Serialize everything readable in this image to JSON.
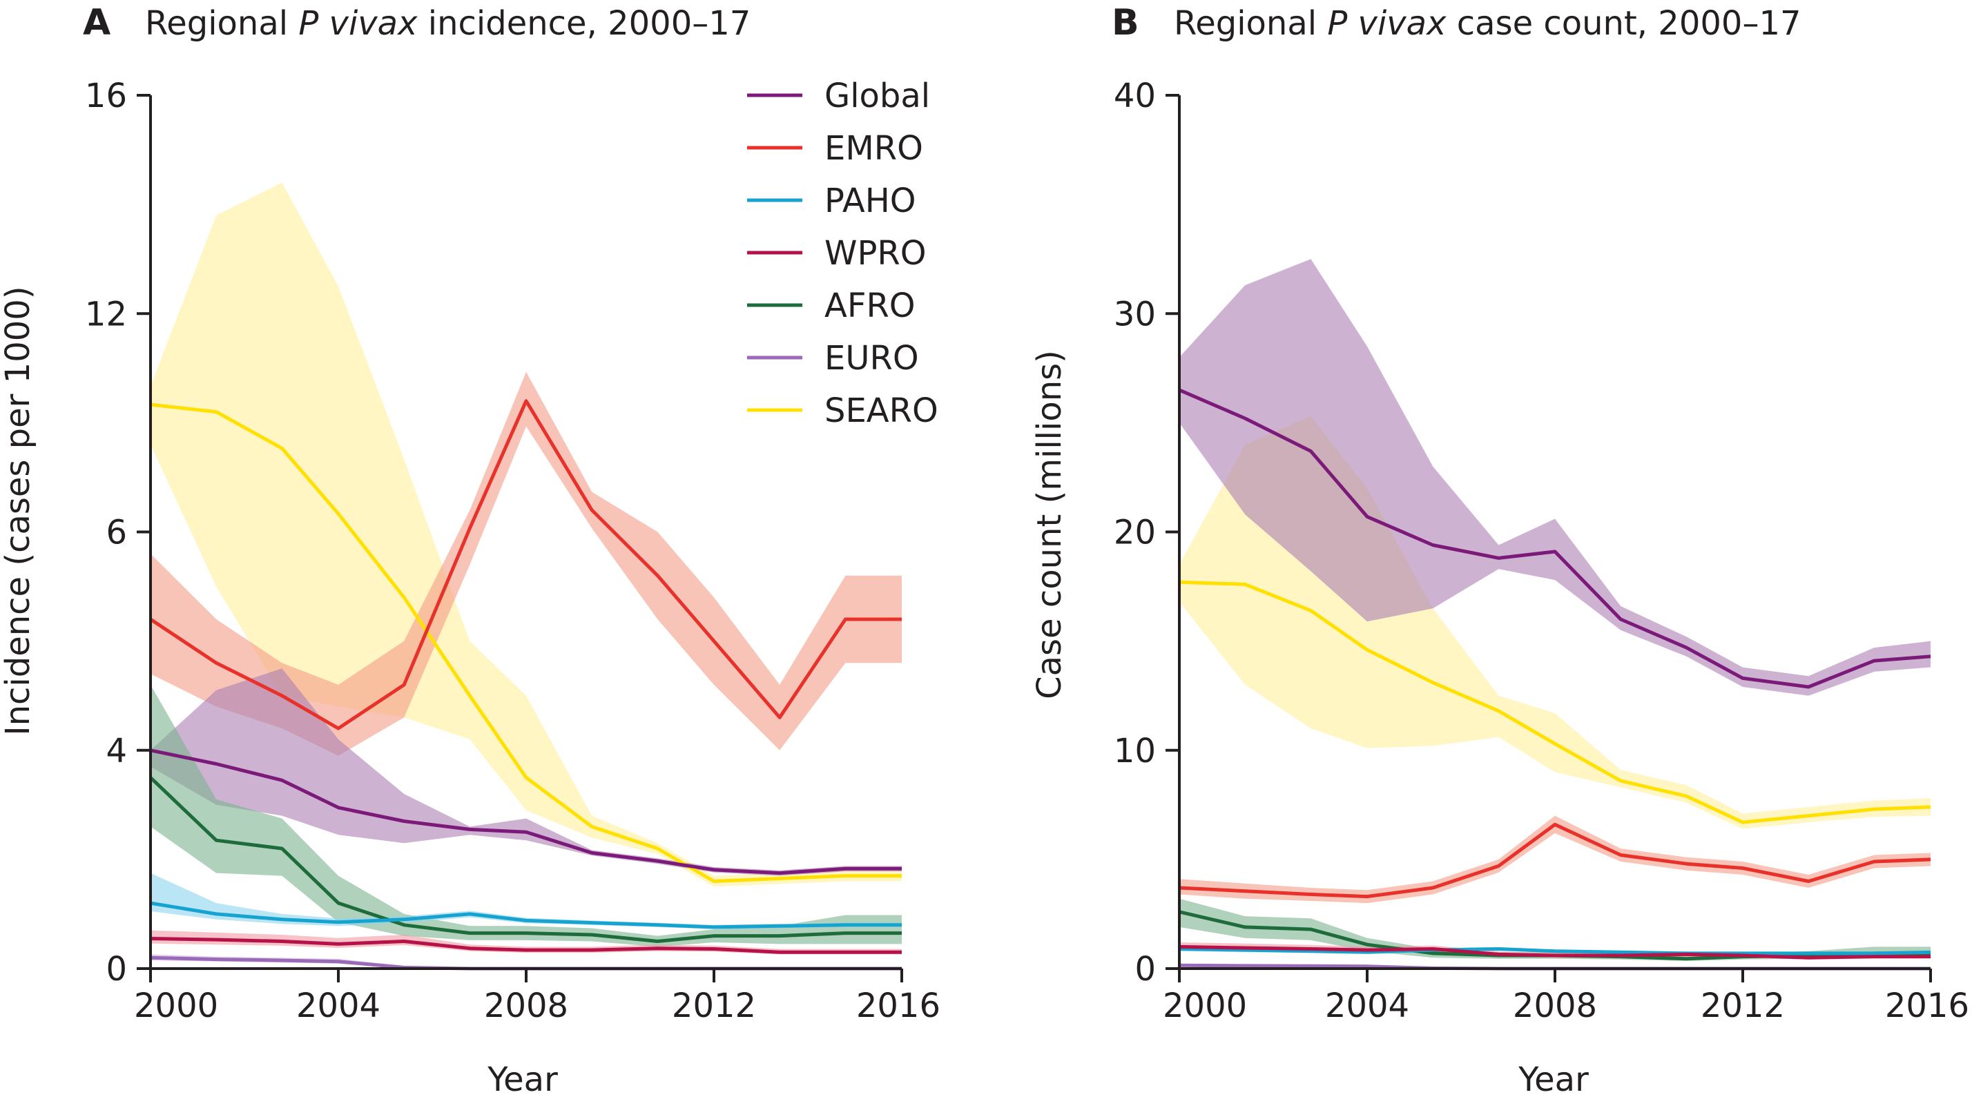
{
  "colors": {
    "Global": "#7b1a79",
    "EMRO": "#e8312a",
    "PAHO": "#16a3cf",
    "WPRO": "#b5124a",
    "AFRO": "#1e6b3c",
    "EURO": "#9a69b8",
    "SEARO": "#ffe000"
  },
  "band_colors": {
    "Global": "#ac80b2",
    "EMRO": "#f39d87",
    "PAHO": "#8cd3ec",
    "WPRO": "#f19aa3",
    "AFRO": "#7bb28e",
    "EURO": "#c9b2dd",
    "SEARO": "#fff09c"
  },
  "chart_data": [
    {
      "type": "line",
      "panel_letter": "A",
      "title_pre": "Regional ",
      "title_italic": "P vivax",
      "title_post": " incidence, 2000–17",
      "xlabel": "Year",
      "ylabel": "Incidence (cases per 1000)",
      "xlim": [
        2000,
        2016
      ],
      "ylim": [
        0,
        16
      ],
      "yticks": [
        0,
        4,
        6,
        12,
        16
      ],
      "xticks": [
        2000,
        2004,
        2008,
        2012,
        2016
      ],
      "legend": {
        "position": "top-right"
      },
      "x": [
        2000,
        2001.4,
        2002.8,
        2004,
        2005.4,
        2006.8,
        2008,
        2009.4,
        2010.8,
        2012,
        2013.4,
        2014.8,
        2016
      ],
      "series": [
        {
          "name": "SEARO",
          "values": [
            9.5,
            9.3,
            8.3,
            6.5,
            5.4,
            4.5,
            3.5,
            2.6,
            2.2,
            1.6,
            1.65,
            1.7,
            1.7
          ],
          "lower": [
            8.4,
            5.5,
            4.5,
            4.4,
            4.3,
            4.1,
            2.9,
            2.4,
            2.1,
            1.5,
            1.55,
            1.6,
            1.6
          ],
          "upper": [
            10.0,
            13.8,
            14.4,
            12.5,
            8.0,
            5.0,
            4.5,
            2.8,
            2.3,
            1.7,
            1.75,
            1.85,
            1.85
          ]
        },
        {
          "name": "EMRO",
          "values": [
            5.2,
            4.8,
            4.5,
            4.2,
            4.6,
            6.1,
            9.6,
            6.6,
            5.6,
            5.0,
            4.3,
            5.2,
            5.2
          ],
          "lower": [
            4.7,
            4.4,
            4.2,
            3.9,
            4.3,
            5.7,
            8.9,
            6.1,
            5.2,
            4.6,
            4.0,
            4.8,
            4.8
          ],
          "upper": [
            5.8,
            5.2,
            4.8,
            4.6,
            5.0,
            6.6,
            10.4,
            7.1,
            6.0,
            5.4,
            4.6,
            5.6,
            5.6
          ]
        },
        {
          "name": "Global",
          "values": [
            4.0,
            3.75,
            3.45,
            2.95,
            2.7,
            2.55,
            2.5,
            2.12,
            1.97,
            1.81,
            1.75,
            1.83,
            1.83
          ],
          "lower": [
            3.7,
            3.0,
            2.8,
            2.45,
            2.3,
            2.45,
            2.35,
            2.07,
            1.92,
            1.76,
            1.7,
            1.78,
            1.78
          ],
          "upper": [
            4.0,
            4.55,
            4.75,
            4.1,
            3.2,
            2.6,
            2.75,
            2.17,
            2.02,
            1.86,
            1.8,
            1.88,
            1.88
          ]
        },
        {
          "name": "AFRO",
          "values": [
            3.5,
            2.35,
            2.2,
            1.2,
            0.8,
            0.65,
            0.65,
            0.62,
            0.5,
            0.6,
            0.6,
            0.65,
            0.65
          ],
          "lower": [
            2.6,
            1.75,
            1.7,
            0.85,
            0.6,
            0.52,
            0.52,
            0.5,
            0.4,
            0.48,
            0.45,
            0.45,
            0.45
          ],
          "upper": [
            4.6,
            3.1,
            2.75,
            1.7,
            1.0,
            0.78,
            0.78,
            0.74,
            0.6,
            0.72,
            0.78,
            0.98,
            0.98
          ]
        },
        {
          "name": "PAHO",
          "values": [
            1.2,
            1.0,
            0.9,
            0.85,
            0.9,
            1.0,
            0.88,
            0.84,
            0.8,
            0.76,
            0.78,
            0.8,
            0.8
          ],
          "lower": [
            1.05,
            0.9,
            0.82,
            0.78,
            0.84,
            0.94,
            0.83,
            0.8,
            0.76,
            0.72,
            0.74,
            0.76,
            0.76
          ],
          "upper": [
            1.75,
            1.2,
            1.0,
            0.92,
            0.96,
            1.06,
            0.93,
            0.88,
            0.84,
            0.8,
            0.82,
            0.84,
            0.84
          ]
        },
        {
          "name": "WPRO",
          "values": [
            0.55,
            0.53,
            0.5,
            0.45,
            0.5,
            0.37,
            0.34,
            0.34,
            0.37,
            0.36,
            0.3,
            0.3,
            0.3
          ],
          "lower": [
            0.46,
            0.44,
            0.42,
            0.38,
            0.43,
            0.32,
            0.29,
            0.29,
            0.32,
            0.31,
            0.26,
            0.26,
            0.26
          ],
          "upper": [
            0.7,
            0.66,
            0.62,
            0.56,
            0.62,
            0.44,
            0.4,
            0.4,
            0.44,
            0.42,
            0.36,
            0.36,
            0.36
          ]
        },
        {
          "name": "EURO",
          "values": [
            0.2,
            0.17,
            0.15,
            0.13,
            0.02,
            0.0,
            0.0,
            0.0,
            0.0,
            0.0,
            0.0,
            0.0,
            0.0
          ],
          "lower": [
            0.15,
            0.13,
            0.11,
            0.09,
            0.0,
            0.0,
            0.0,
            0.0,
            0.0,
            0.0,
            0.0,
            0.0,
            0.0
          ],
          "upper": [
            0.26,
            0.22,
            0.2,
            0.18,
            0.05,
            0.0,
            0.0,
            0.0,
            0.0,
            0.0,
            0.0,
            0.0,
            0.0
          ]
        }
      ]
    },
    {
      "type": "line",
      "panel_letter": "B",
      "title_pre": "Regional ",
      "title_italic": "P vivax",
      "title_post": " case count, 2000–17",
      "xlabel": "Year",
      "ylabel": "Case count (millions)",
      "xlim": [
        2000,
        2016
      ],
      "ylim": [
        0,
        40
      ],
      "yticks": [
        0,
        10,
        20,
        30,
        40
      ],
      "xticks": [
        2000,
        2004,
        2008,
        2012,
        2016
      ],
      "x": [
        2000,
        2001.4,
        2002.8,
        2004,
        2005.4,
        2006.8,
        2008,
        2009.4,
        2010.8,
        2012,
        2013.4,
        2014.8,
        2016
      ],
      "series": [
        {
          "name": "SEARO",
          "values": [
            17.7,
            17.6,
            16.4,
            14.6,
            13.1,
            11.8,
            10.3,
            8.6,
            7.9,
            6.7,
            7.0,
            7.3,
            7.4
          ],
          "lower": [
            16.8,
            13.0,
            11.0,
            10.1,
            10.2,
            10.6,
            9.0,
            8.3,
            7.6,
            6.4,
            6.7,
            6.95,
            7.0
          ],
          "upper": [
            18.5,
            24.0,
            25.3,
            22.0,
            16.5,
            12.5,
            11.7,
            9.1,
            8.4,
            7.1,
            7.4,
            7.7,
            7.8
          ]
        },
        {
          "name": "EMRO",
          "values": [
            3.7,
            3.55,
            3.4,
            3.3,
            3.7,
            4.7,
            6.6,
            5.2,
            4.8,
            4.6,
            4.0,
            4.9,
            5.0
          ],
          "lower": [
            3.4,
            3.2,
            3.1,
            3.0,
            3.4,
            4.4,
            6.2,
            4.9,
            4.5,
            4.3,
            3.7,
            4.6,
            4.7
          ],
          "upper": [
            4.1,
            3.9,
            3.7,
            3.6,
            4.0,
            5.0,
            7.0,
            5.5,
            5.1,
            4.9,
            4.3,
            5.2,
            5.3
          ]
        },
        {
          "name": "Global",
          "values": [
            26.5,
            25.2,
            23.7,
            20.7,
            19.4,
            18.8,
            19.1,
            16.0,
            14.7,
            13.3,
            12.9,
            14.1,
            14.3
          ],
          "lower": [
            25.0,
            20.8,
            18.2,
            15.9,
            16.5,
            18.3,
            17.8,
            15.5,
            14.3,
            12.9,
            12.5,
            13.6,
            13.8
          ],
          "upper": [
            28.0,
            31.3,
            32.5,
            28.5,
            23.0,
            19.4,
            20.6,
            16.6,
            15.2,
            13.8,
            13.4,
            14.7,
            15.0
          ]
        },
        {
          "name": "AFRO",
          "values": [
            2.6,
            1.9,
            1.8,
            1.1,
            0.7,
            0.6,
            0.6,
            0.55,
            0.45,
            0.55,
            0.6,
            0.7,
            0.7
          ],
          "lower": [
            1.9,
            1.4,
            1.3,
            0.8,
            0.5,
            0.45,
            0.45,
            0.42,
            0.35,
            0.42,
            0.45,
            0.5,
            0.5
          ],
          "upper": [
            3.2,
            2.4,
            2.3,
            1.4,
            0.9,
            0.75,
            0.75,
            0.7,
            0.55,
            0.68,
            0.8,
            1.0,
            1.0
          ]
        },
        {
          "name": "PAHO",
          "values": [
            0.9,
            0.85,
            0.8,
            0.75,
            0.85,
            0.9,
            0.8,
            0.75,
            0.7,
            0.7,
            0.7,
            0.7,
            0.75
          ],
          "lower": [
            0.8,
            0.75,
            0.72,
            0.68,
            0.78,
            0.82,
            0.73,
            0.68,
            0.64,
            0.64,
            0.64,
            0.64,
            0.68
          ],
          "upper": [
            1.0,
            0.95,
            0.88,
            0.82,
            0.92,
            0.98,
            0.87,
            0.82,
            0.76,
            0.76,
            0.76,
            0.76,
            0.82
          ]
        },
        {
          "name": "WPRO",
          "values": [
            1.0,
            0.95,
            0.9,
            0.85,
            0.9,
            0.65,
            0.6,
            0.6,
            0.65,
            0.6,
            0.5,
            0.55,
            0.55
          ],
          "lower": [
            0.85,
            0.8,
            0.76,
            0.72,
            0.76,
            0.55,
            0.5,
            0.5,
            0.55,
            0.5,
            0.42,
            0.46,
            0.46
          ],
          "upper": [
            1.2,
            1.15,
            1.08,
            1.0,
            1.06,
            0.78,
            0.72,
            0.72,
            0.78,
            0.72,
            0.6,
            0.66,
            0.66
          ]
        },
        {
          "name": "EURO",
          "values": [
            0.15,
            0.13,
            0.12,
            0.1,
            0.02,
            0.0,
            0.0,
            0.0,
            0.0,
            0.0,
            0.0,
            0.0,
            0.0
          ],
          "lower": [
            0.1,
            0.09,
            0.08,
            0.06,
            0.0,
            0.0,
            0.0,
            0.0,
            0.0,
            0.0,
            0.0,
            0.0,
            0.0
          ],
          "upper": [
            0.22,
            0.19,
            0.17,
            0.15,
            0.05,
            0.0,
            0.0,
            0.0,
            0.0,
            0.0,
            0.0,
            0.0,
            0.0
          ]
        }
      ]
    }
  ],
  "legend_order": [
    "Global",
    "EMRO",
    "PAHO",
    "WPRO",
    "AFRO",
    "EURO",
    "SEARO"
  ]
}
